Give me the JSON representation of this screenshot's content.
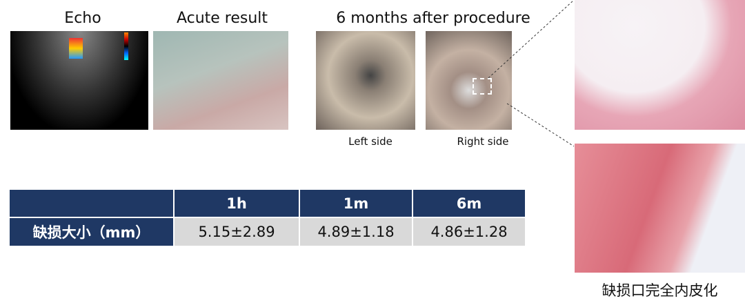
{
  "labels": {
    "echo": "Echo",
    "acute": "Acute result",
    "months": "6 months after procedure",
    "left": "Left side",
    "right": "Right side"
  },
  "table": {
    "columns": [
      "1h",
      "1m",
      "6m"
    ],
    "rows": [
      {
        "label": "缺损大小（mm）",
        "cells": [
          "5.15±2.89",
          "4.89±1.18",
          "4.86±1.28"
        ]
      }
    ]
  },
  "caption": "缺损口完全内皮化"
}
